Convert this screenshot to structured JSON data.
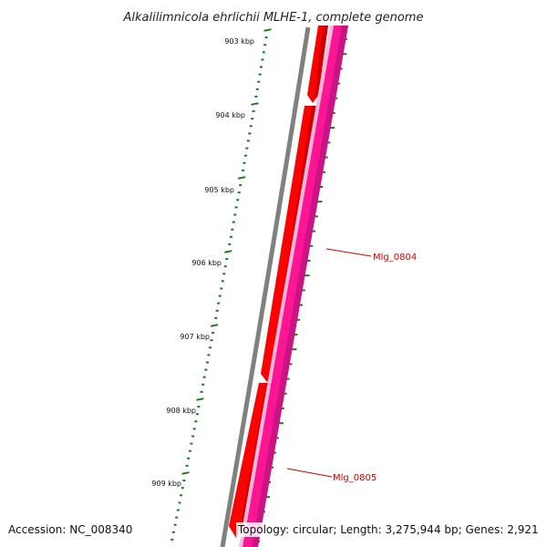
{
  "title": "Alkalilimnicola ehrlichii MLHE-1, complete genome",
  "ticks": [
    "903 kbp",
    "904 kbp",
    "905 kbp",
    "906 kbp",
    "907 kbp",
    "908 kbp",
    "909 kbp"
  ],
  "genes": [
    {
      "name": "Mlg_0804"
    },
    {
      "name": "Mlg_0805"
    }
  ],
  "footer": {
    "accession": "Accession: NC_008340",
    "topology": "Topology: circular; Length: 3,275,944 bp; Genes: 2,921"
  },
  "colors": {
    "backbone": "#808080",
    "gene_forward": "#ff0000",
    "gene_forward_dark": "#cc0000",
    "cds_track": "#ff1493",
    "cds_track_dark": "#c71585",
    "cds_track_light": "#ffb6e1",
    "tick": "#1a7a1a",
    "label": "#cc0000"
  }
}
